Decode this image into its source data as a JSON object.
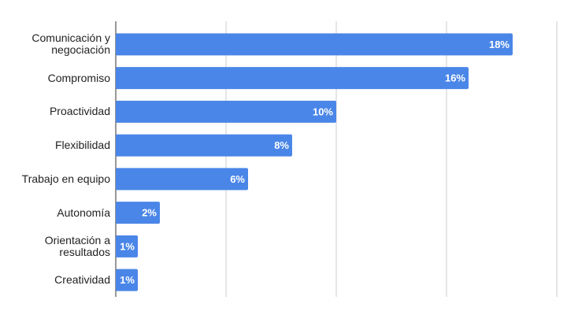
{
  "chart_data": {
    "type": "bar",
    "orientation": "horizontal",
    "categories": [
      "Comunicación y negociación",
      "Compromiso",
      "Proactividad",
      "Flexibilidad",
      "Trabajo en equipo",
      "Autonomía",
      "Orientación a resultados",
      "Creatividad"
    ],
    "values": [
      18,
      16,
      10,
      8,
      6,
      2,
      1,
      1
    ],
    "value_labels": [
      "18%",
      "16%",
      "10%",
      "8%",
      "6%",
      "2%",
      "1%",
      "1%"
    ],
    "color": "#4a86e8",
    "xlim": [
      0,
      20
    ],
    "xticks": [
      0,
      5,
      10,
      15,
      20
    ],
    "grid": true
  }
}
